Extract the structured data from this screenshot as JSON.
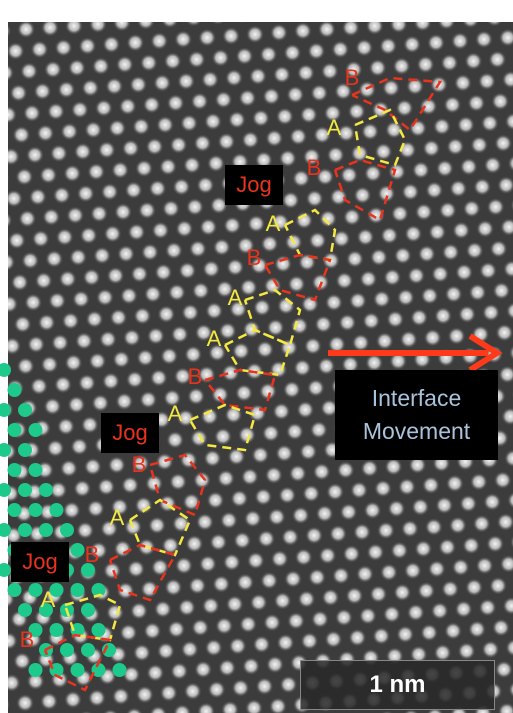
{
  "stacking_labels": [
    "B",
    "A",
    "B",
    "A",
    "B",
    "A",
    "A",
    "B",
    "A",
    "B",
    "A",
    "B",
    "A",
    "B"
  ],
  "jog_labels": [
    "Jog",
    "Jog",
    "Jog"
  ],
  "movement_label": "Interface Movement",
  "scale_bar": "1 nm"
}
